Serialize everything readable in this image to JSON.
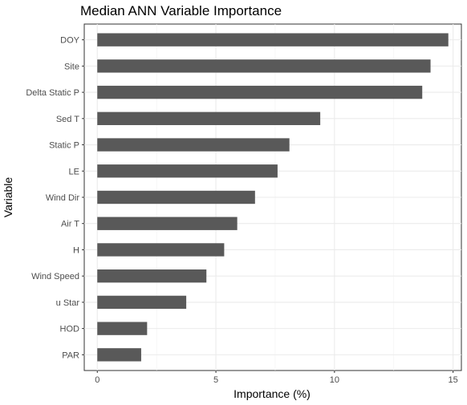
{
  "chart_data": {
    "type": "bar",
    "orientation": "horizontal",
    "title": "Median ANN Variable Importance",
    "xlabel": "Importance (%)",
    "ylabel": "Variable",
    "categories": [
      "DOY",
      "Site",
      "Delta Static P",
      "Sed T",
      "Static P",
      "LE",
      "Wind Dir",
      "Air T",
      "H",
      "Wind Speed",
      "u Star",
      "HOD",
      "PAR"
    ],
    "values": [
      14.8,
      14.05,
      13.7,
      9.4,
      8.1,
      7.6,
      6.65,
      5.9,
      5.35,
      4.6,
      3.75,
      2.1,
      1.85
    ],
    "xlim": [
      -0.55,
      15.35
    ],
    "xticks": [
      0,
      5,
      10,
      15
    ],
    "grid": true,
    "bar_color": "#595959"
  }
}
